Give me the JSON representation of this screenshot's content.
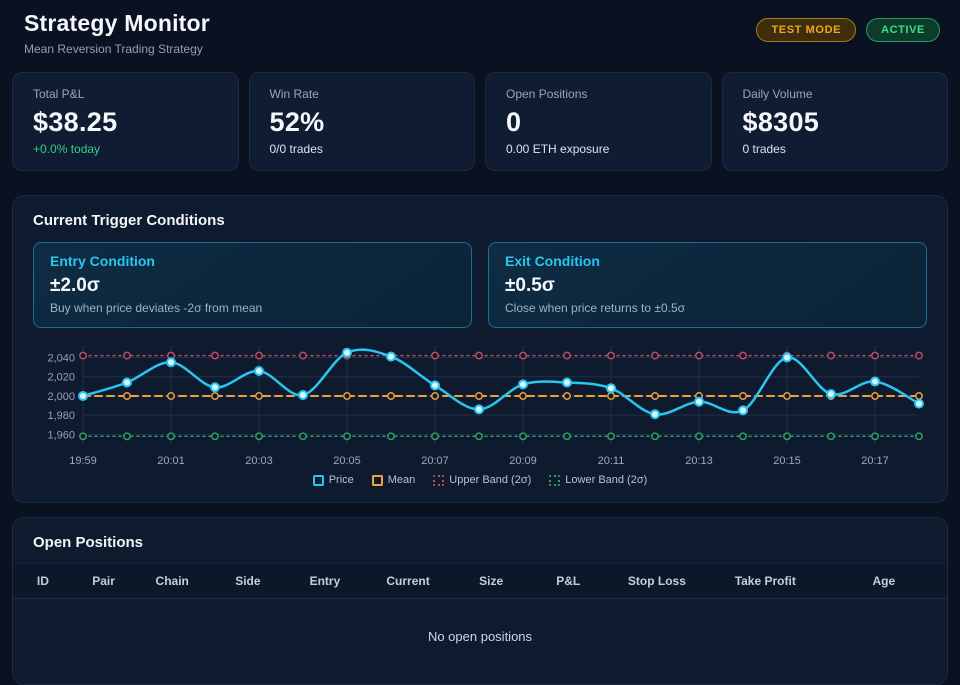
{
  "header": {
    "title": "Strategy Monitor",
    "subtitle": "Mean Reversion Trading Strategy",
    "badges": [
      {
        "label": "TEST MODE",
        "style": "warning",
        "color": "#f3a71c"
      },
      {
        "label": "ACTIVE",
        "style": "success",
        "color": "#35e08e"
      }
    ]
  },
  "stats": [
    {
      "label": "Total P&L",
      "value": "$38.25",
      "sub": "+0.0% today",
      "sub_style": "positive"
    },
    {
      "label": "Win Rate",
      "value": "52%",
      "sub": "0/0 trades",
      "sub_style": "neutral"
    },
    {
      "label": "Open Positions",
      "value": "0",
      "sub": "0.00 ETH exposure",
      "sub_style": "neutral"
    },
    {
      "label": "Daily Volume",
      "value": "$8305",
      "sub": "0 trades",
      "sub_style": "neutral"
    }
  ],
  "triggers": {
    "heading": "Current Trigger Conditions",
    "entry": {
      "title": "Entry Condition",
      "value": "±2.0σ",
      "description": "Buy when price deviates -2σ from mean"
    },
    "exit": {
      "title": "Exit Condition",
      "value": "±0.5σ",
      "description": "Close when price returns to ±0.5σ"
    }
  },
  "chart_data": {
    "type": "line",
    "x": [
      "19:59",
      "20:00",
      "20:01",
      "20:02",
      "20:03",
      "20:04",
      "20:05",
      "20:06",
      "20:07",
      "20:08",
      "20:09",
      "20:10",
      "20:11",
      "20:12",
      "20:13",
      "20:14",
      "20:15",
      "20:16",
      "20:17",
      "20:18"
    ],
    "series": [
      {
        "name": "Price",
        "color": "#29c6f2",
        "style": "solid",
        "values": [
          2000,
          2014,
          2035,
          2009,
          2026,
          2001,
          2045,
          2041,
          2011,
          1986,
          2012,
          2014,
          2008,
          1981,
          1994,
          1985,
          2040,
          2002,
          2015,
          1992
        ]
      },
      {
        "name": "Mean",
        "color": "#f0a13a",
        "style": "dashed",
        "constant": 2000
      },
      {
        "name": "Upper Band (2σ)",
        "color": "#bf4a63",
        "style": "dotted",
        "constant": 2042
      },
      {
        "name": "Lower Band (2σ)",
        "color": "#2f9e62",
        "style": "dotted",
        "constant": 1958
      }
    ],
    "y_ticks": [
      1960,
      1980,
      2000,
      2020,
      2040
    ],
    "ylim": [
      1950,
      2052
    ],
    "x_label_every": 2,
    "grid": true,
    "legend_position": "bottom",
    "title": "",
    "xlabel": "",
    "ylabel": ""
  },
  "positions": {
    "heading": "Open Positions",
    "columns": [
      "ID",
      "Pair",
      "Chain",
      "Side",
      "Entry",
      "Current",
      "Size",
      "P&L",
      "Stop Loss",
      "Take Profit",
      "Age"
    ],
    "empty_message": "No open positions"
  },
  "colors": {
    "accent_cyan": "#29c6f2",
    "mean_orange": "#f0a13a",
    "upper_band_red": "#bf4a63",
    "lower_band_green": "#2f9e62",
    "positive_green": "#2fd08b",
    "warning_amber": "#f3a71c",
    "active_green": "#35e08e",
    "background": "#0a1120",
    "panel_background": "#0e1a2e"
  }
}
